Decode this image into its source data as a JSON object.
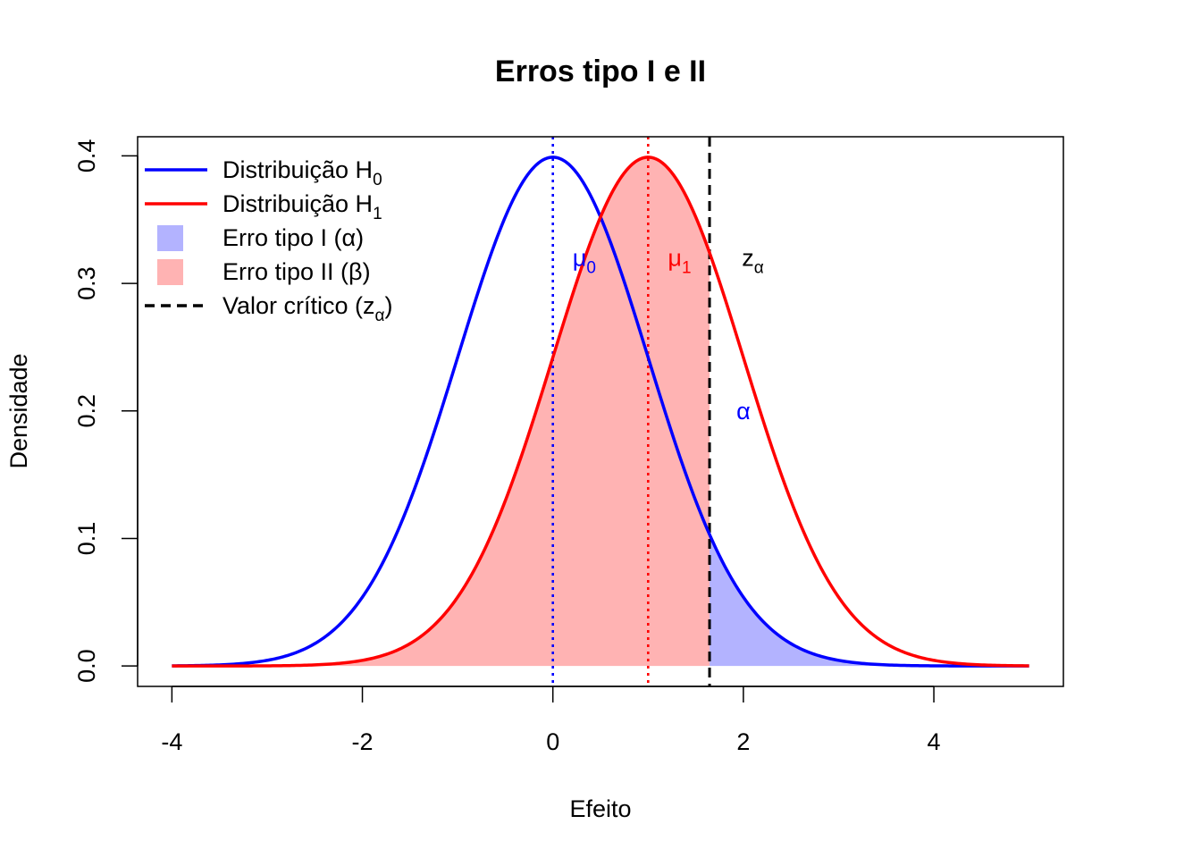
{
  "chart_data": {
    "type": "line",
    "title": "Erros tipo I e II",
    "xlabel": "Efeito",
    "ylabel": "Densidade",
    "xlim": [
      -4.36,
      5.36
    ],
    "ylim": [
      -0.016,
      0.415
    ],
    "x_ticks": [
      -4,
      -2,
      0,
      2,
      4
    ],
    "x_tick_labels": [
      "-4",
      "-2",
      "0",
      "2",
      "4"
    ],
    "y_ticks": [
      0.0,
      0.1,
      0.2,
      0.3,
      0.4
    ],
    "y_tick_labels": [
      "0.0",
      "0.1",
      "0.2",
      "0.3",
      "0.4"
    ],
    "grid": false,
    "x_range": [
      -4,
      5
    ],
    "series": [
      {
        "name": "Distribuição H0",
        "distribution": "normal",
        "mean": 0,
        "sd": 1,
        "color": "#0000ff"
      },
      {
        "name": "Distribuição H1",
        "distribution": "normal",
        "mean": 1,
        "sd": 1,
        "color": "#ff0000"
      }
    ],
    "shaded_areas": [
      {
        "name": "Erro tipo I (α)",
        "under": "H0",
        "from": 1.645,
        "to": 5,
        "color": "#b3b3ff"
      },
      {
        "name": "Erro tipo II (β)",
        "under": "H1",
        "from": -4,
        "to": 1.645,
        "color": "#ffb3b3"
      }
    ],
    "vlines": [
      {
        "x": 0,
        "style": "dotted",
        "color": "#0000ff"
      },
      {
        "x": 1,
        "style": "dotted",
        "color": "#ff0000"
      },
      {
        "x": 1.645,
        "style": "dashed",
        "color": "#000000"
      }
    ],
    "annotations": [
      {
        "text": "μ",
        "sub": "0",
        "x": 0.33,
        "y": 0.32,
        "color": "#0000ff"
      },
      {
        "text": "μ",
        "sub": "1",
        "x": 1.33,
        "y": 0.32,
        "color": "#ff0000"
      },
      {
        "text": "z",
        "sub": "α",
        "x": 2.1,
        "y": 0.32,
        "color": "#000000"
      },
      {
        "text": "α",
        "sub": "",
        "x": 2.0,
        "y": 0.2,
        "color": "#0000ff"
      }
    ],
    "legend": {
      "position": "top-left",
      "items": [
        {
          "type": "line",
          "main": "Distribuição H",
          "sub": "0",
          "after": "",
          "color": "#0000ff",
          "dash": "solid"
        },
        {
          "type": "line",
          "main": "Distribuição H",
          "sub": "1",
          "after": "",
          "color": "#ff0000",
          "dash": "solid"
        },
        {
          "type": "fill",
          "main": "Erro tipo I (α)",
          "sub": "",
          "after": "",
          "color": "#b3b3ff"
        },
        {
          "type": "fill",
          "main": "Erro tipo II (β)",
          "sub": "",
          "after": "",
          "color": "#ffb3b3"
        },
        {
          "type": "line",
          "main": "Valor crítico (z",
          "sub": "α",
          "after": ")",
          "color": "#000000",
          "dash": "dashed"
        }
      ]
    }
  }
}
